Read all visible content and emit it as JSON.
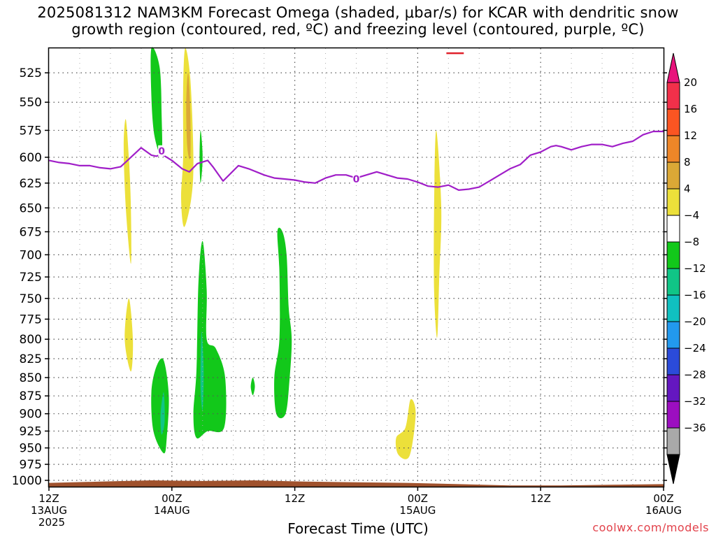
{
  "chart_data": {
    "type": "heatmap",
    "title_line1": "2025081312 NAM3KM Forecast Omega (shaded, μbar/s) for KCAR with dendritic snow",
    "title_line2": "growth region (contoured, red, ºC) and freezing level (contoured, purple, ºC)",
    "xlabel": "Forecast Time (UTC)",
    "credit": "coolwx.com/models",
    "y_axis": {
      "scale": "log-pressure",
      "inverted": true,
      "range": [
        1010,
        505
      ],
      "ticks": [
        525,
        550,
        575,
        600,
        625,
        650,
        675,
        700,
        725,
        750,
        775,
        800,
        825,
        850,
        875,
        900,
        925,
        950,
        975,
        1000
      ]
    },
    "x_axis": {
      "range_hours": [
        0,
        60
      ],
      "ticks": [
        {
          "hour": 0,
          "line1": "12Z",
          "line2": "13AUG",
          "line3": "2025"
        },
        {
          "hour": 12,
          "line1": "00Z",
          "line2": "14AUG",
          "line3": ""
        },
        {
          "hour": 24,
          "line1": "12Z",
          "line2": "",
          "line3": ""
        },
        {
          "hour": 36,
          "line1": "00Z",
          "line2": "15AUG",
          "line3": ""
        },
        {
          "hour": 48,
          "line1": "12Z",
          "line2": "",
          "line3": ""
        },
        {
          "hour": 60,
          "line1": "00Z",
          "line2": "16AUG",
          "line3": ""
        }
      ]
    },
    "grid": true,
    "colorbar": {
      "labels": [
        "20",
        "16",
        "12",
        "8",
        "4",
        "−4",
        "−8",
        "−12",
        "−16",
        "−20",
        "−24",
        "−28",
        "−32",
        "−36"
      ],
      "colors": [
        "#f2304a",
        "#fb5522",
        "#ee8628",
        "#dba836",
        "#ece03a",
        "#ffffff",
        "#12c81a",
        "#10c586",
        "#10c0c0",
        "#2299ee",
        "#2b4bda",
        "#6417c0",
        "#9c0ec0",
        "#a9a9a9"
      ],
      "over_color": "#e8137c",
      "under_color": "#000000"
    },
    "freezing_level": {
      "color": "#a01ec8",
      "label": "0",
      "points": [
        [
          0,
          603
        ],
        [
          1,
          605
        ],
        [
          2,
          606
        ],
        [
          3,
          608
        ],
        [
          4,
          608
        ],
        [
          5,
          610
        ],
        [
          6,
          611
        ],
        [
          7,
          609
        ],
        [
          8,
          600
        ],
        [
          9,
          591
        ],
        [
          10,
          598
        ],
        [
          10.5,
          599
        ],
        [
          11,
          597
        ],
        [
          12,
          603
        ],
        [
          13,
          611
        ],
        [
          13.7,
          614
        ],
        [
          14.5,
          606
        ],
        [
          15.5,
          603
        ],
        [
          16,
          609
        ],
        [
          17,
          623
        ],
        [
          18.5,
          608
        ],
        [
          19.5,
          611
        ],
        [
          21,
          617
        ],
        [
          22,
          620
        ],
        [
          23,
          621
        ],
        [
          24,
          622
        ],
        [
          25,
          624
        ],
        [
          26,
          625
        ],
        [
          27,
          620
        ],
        [
          28,
          617
        ],
        [
          29,
          617
        ],
        [
          30,
          620
        ],
        [
          31,
          617
        ],
        [
          32,
          614
        ],
        [
          33,
          617
        ],
        [
          34,
          620
        ],
        [
          35,
          621
        ],
        [
          36,
          624
        ],
        [
          37,
          628
        ],
        [
          38,
          629
        ],
        [
          39,
          627
        ],
        [
          40,
          632
        ],
        [
          41,
          631
        ],
        [
          42,
          629
        ],
        [
          43,
          623
        ],
        [
          44,
          617
        ],
        [
          45,
          611
        ],
        [
          46,
          607
        ],
        [
          47,
          598
        ],
        [
          48,
          595
        ],
        [
          49,
          590
        ],
        [
          49.5,
          589
        ],
        [
          50,
          590
        ],
        [
          51,
          593
        ],
        [
          52,
          590
        ],
        [
          53,
          588
        ],
        [
          54,
          588
        ],
        [
          55,
          590
        ],
        [
          56,
          587
        ],
        [
          57,
          585
        ],
        [
          58,
          579
        ],
        [
          59,
          576
        ],
        [
          60,
          576
        ]
      ],
      "label_points": [
        [
          11,
          594
        ],
        [
          30,
          621
        ]
      ]
    },
    "dendritic_region": {
      "color": "#e0202a",
      "points": [
        [
          38.8,
          509
        ],
        [
          40.5,
          509
        ]
      ]
    },
    "omega_features": [
      {
        "fill": "#ece03a",
        "points": [
          [
            7.5,
            565
          ],
          [
            7.8,
            600
          ],
          [
            8.0,
            650
          ],
          [
            8.0,
            710
          ],
          [
            7.5,
            650
          ],
          [
            7.3,
            590
          ]
        ]
      },
      {
        "fill": "#12c81a",
        "points": [
          [
            10.0,
            505
          ],
          [
            10.8,
            520
          ],
          [
            11.0,
            560
          ],
          [
            11.0,
            598
          ],
          [
            10.3,
            580
          ],
          [
            10.0,
            545
          ]
        ]
      },
      {
        "fill": "#ece03a",
        "points": [
          [
            13.3,
            505
          ],
          [
            13.8,
            530
          ],
          [
            14.1,
            600
          ],
          [
            13.9,
            640
          ],
          [
            13.2,
            670
          ],
          [
            12.9,
            640
          ],
          [
            13.1,
            600
          ],
          [
            13.1,
            540
          ]
        ]
      },
      {
        "fill": "#dba836",
        "points": [
          [
            13.6,
            525
          ],
          [
            13.8,
            560
          ],
          [
            13.8,
            600
          ],
          [
            13.5,
            590
          ],
          [
            13.4,
            550
          ]
        ]
      },
      {
        "fill": "#12c81a",
        "points": [
          [
            14.8,
            575
          ],
          [
            15.0,
            600
          ],
          [
            14.8,
            625
          ],
          [
            14.7,
            600
          ]
        ]
      },
      {
        "fill": "#ece03a",
        "points": [
          [
            7.8,
            750
          ],
          [
            8.2,
            800
          ],
          [
            8.0,
            842
          ],
          [
            7.4,
            800
          ]
        ]
      },
      {
        "fill": "#12c81a",
        "points": [
          [
            11.2,
            827
          ],
          [
            11.7,
            875
          ],
          [
            11.5,
            935
          ],
          [
            11.2,
            958
          ],
          [
            10.2,
            925
          ],
          [
            10.0,
            870
          ],
          [
            10.5,
            835
          ]
        ]
      },
      {
        "fill": "#10c586",
        "points": [
          [
            11.2,
            870
          ],
          [
            11.3,
            910
          ],
          [
            11.0,
            930
          ],
          [
            10.9,
            900
          ]
        ]
      },
      {
        "fill": "#12c81a",
        "points": [
          [
            15.0,
            685
          ],
          [
            15.4,
            740
          ],
          [
            15.4,
            800
          ],
          [
            16.3,
            812
          ],
          [
            17.2,
            850
          ],
          [
            17.1,
            920
          ],
          [
            15.5,
            925
          ],
          [
            14.4,
            935
          ],
          [
            14.1,
            900
          ],
          [
            14.4,
            840
          ],
          [
            14.6,
            730
          ]
        ]
      },
      {
        "fill": "#10c586",
        "points": [
          [
            14.9,
            790
          ],
          [
            15.1,
            840
          ],
          [
            15.0,
            895
          ],
          [
            14.8,
            860
          ]
        ]
      },
      {
        "fill": "#12c81a",
        "points": [
          [
            19.9,
            850
          ],
          [
            20.1,
            862
          ],
          [
            19.9,
            874
          ],
          [
            19.7,
            862
          ]
        ]
      },
      {
        "fill": "#12c81a",
        "points": [
          [
            22.8,
            675
          ],
          [
            23.2,
            700
          ],
          [
            23.4,
            760
          ],
          [
            23.7,
            800
          ],
          [
            23.5,
            850
          ],
          [
            23.1,
            900
          ],
          [
            22.2,
            900
          ],
          [
            22.0,
            850
          ],
          [
            22.5,
            800
          ],
          [
            22.5,
            720
          ],
          [
            22.3,
            675
          ]
        ]
      },
      {
        "fill": "#ece03a",
        "points": [
          [
            35.3,
            880
          ],
          [
            35.8,
            900
          ],
          [
            35.2,
            962
          ],
          [
            34.1,
            960
          ],
          [
            33.9,
            935
          ],
          [
            34.8,
            920
          ]
        ]
      },
      {
        "fill": "#ece03a",
        "points": [
          [
            37.8,
            575
          ],
          [
            38.3,
            650
          ],
          [
            38.1,
            725
          ],
          [
            37.9,
            798
          ],
          [
            37.6,
            740
          ],
          [
            37.6,
            650
          ]
        ]
      }
    ]
  }
}
